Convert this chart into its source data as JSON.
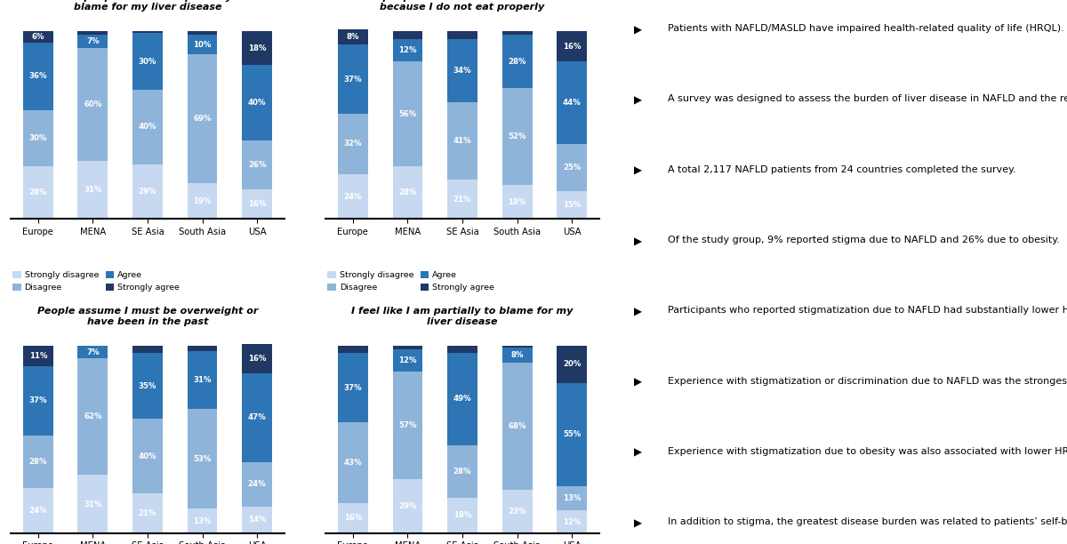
{
  "charts": [
    {
      "title": "Other people think I am partially to\nblame for my liver disease",
      "regions": [
        "Europe",
        "MENA",
        "SE Asia",
        "South Asia",
        "USA"
      ],
      "strongly_disagree": [
        28,
        31,
        29,
        19,
        16
      ],
      "disagree": [
        30,
        60,
        40,
        69,
        26
      ],
      "agree": [
        36,
        7,
        30,
        10,
        40
      ],
      "strongly_agree": [
        6,
        2,
        1,
        2,
        18
      ]
    },
    {
      "title": "Some people believe I have liver disease\nbecause I do not eat properly",
      "regions": [
        "Europe",
        "MENA",
        "SE Asia",
        "South Asia",
        "USA"
      ],
      "strongly_disagree": [
        24,
        28,
        21,
        18,
        15
      ],
      "disagree": [
        32,
        56,
        41,
        52,
        25
      ],
      "agree": [
        37,
        12,
        34,
        28,
        44
      ],
      "strongly_agree": [
        8,
        4,
        4,
        2,
        16
      ]
    },
    {
      "title": "People assume I must be overweight or\nhave been in the past",
      "regions": [
        "Europe",
        "MENA",
        "SE Asia",
        "South Asia",
        "USA"
      ],
      "strongly_disagree": [
        24,
        31,
        21,
        13,
        14
      ],
      "disagree": [
        28,
        62,
        40,
        53,
        24
      ],
      "agree": [
        37,
        7,
        35,
        31,
        47
      ],
      "strongly_agree": [
        11,
        0,
        4,
        3,
        16
      ]
    },
    {
      "title": "I feel like I am partially to blame for my\nliver disease",
      "regions": [
        "Europe",
        "MENA",
        "SE Asia",
        "South Asia",
        "USA"
      ],
      "strongly_disagree": [
        16,
        29,
        19,
        23,
        12
      ],
      "disagree": [
        43,
        57,
        28,
        68,
        13
      ],
      "agree": [
        37,
        12,
        49,
        8,
        55
      ],
      "strongly_agree": [
        4,
        2,
        4,
        1,
        20
      ]
    }
  ],
  "colors": {
    "strongly_disagree": "#c6d9f1",
    "disagree": "#8fb4d9",
    "agree": "#2e75b6",
    "strongly_agree": "#1f3864"
  },
  "right_panel_bullets": [
    [
      "Patients with NAFLD/MASLD have impaired health-related quality of life (HRQL)."
    ],
    [
      "A survey was designed to assess the burden of liver disease in NAFLD and the relationship between stigma and HRQL."
    ],
    [
      "A total 2,117 NAFLD patients from 24 countries completed the survey."
    ],
    [
      "Of the study group, 9% reported stigma due to NAFLD and 26% due to obesity."
    ],
    [
      "Participants who reported stigmatization due to NAFLD had substantially lower HRQL scores (all p<0.0001)."
    ],
    [
      "Experience with stigmatization or discrimination due to NAFLD was the strongest independent predictor of lower HRQL scores in NAFLD after adjustment for confounders."
    ],
    [
      "Experience with stigmatization due to obesity was also associated with lower HRQL scores."
    ],
    [
      "In addition to stigma, the greatest disease burden was related to patients’ self-blame for their liver disease (left)."
    ]
  ]
}
